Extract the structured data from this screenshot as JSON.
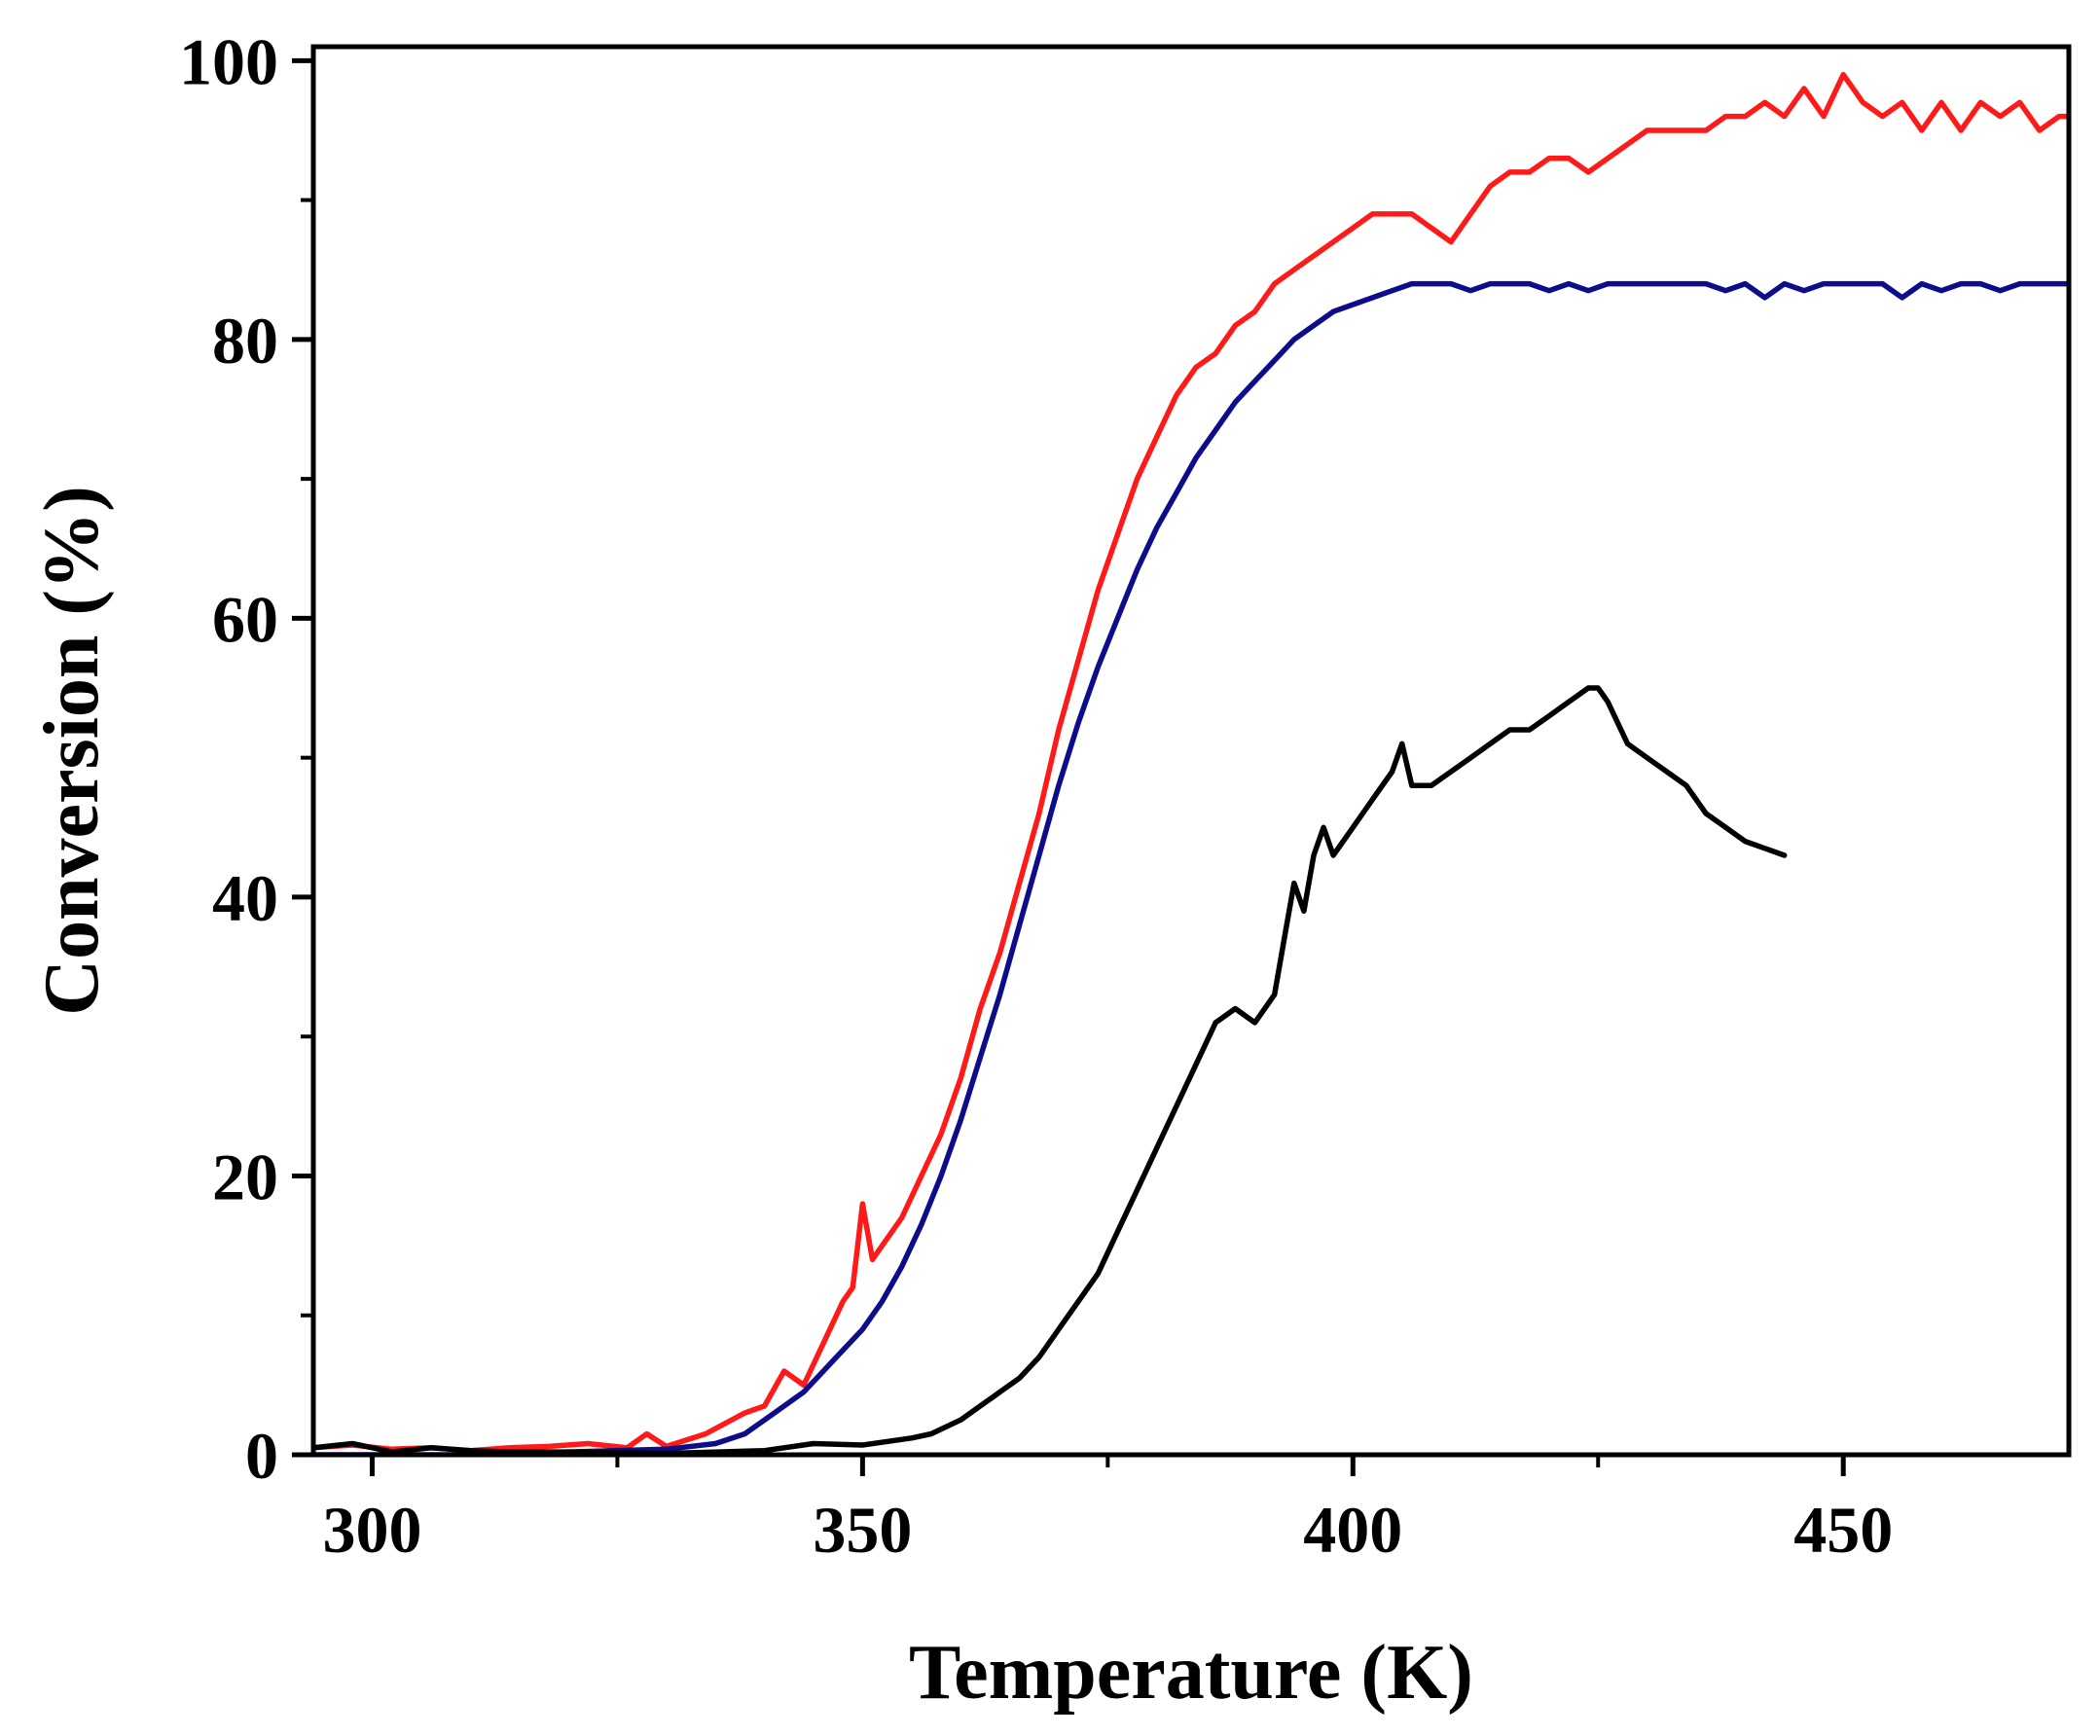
{
  "chart_data": {
    "type": "line",
    "title": "",
    "xlabel": "Temperature (K)",
    "ylabel": "Conversion (%)",
    "xlim": [
      294,
      473
    ],
    "ylim": [
      0,
      101
    ],
    "x_ticks": [
      300,
      350,
      400,
      450
    ],
    "x_tick_labels": [
      "300",
      "350",
      "400",
      "450"
    ],
    "x_minor_ticks": [
      325,
      375,
      425
    ],
    "y_ticks": [
      0,
      20,
      40,
      60,
      80,
      100
    ],
    "y_tick_labels": [
      "0",
      "20",
      "40",
      "60",
      "80",
      "100"
    ],
    "y_minor_ticks": [
      10,
      30,
      50,
      70,
      90
    ],
    "grid": false,
    "legend": "none",
    "series": [
      {
        "name": "red",
        "color": "#ff1a1a",
        "points": [
          [
            294,
            0.5
          ],
          [
            298,
            0.7
          ],
          [
            302,
            0.4
          ],
          [
            306,
            0.5
          ],
          [
            310,
            0.3
          ],
          [
            314,
            0.5
          ],
          [
            318,
            0.6
          ],
          [
            322,
            0.8
          ],
          [
            326,
            0.5
          ],
          [
            328,
            1.5
          ],
          [
            330,
            0.6
          ],
          [
            334,
            1.5
          ],
          [
            338,
            3
          ],
          [
            340,
            3.5
          ],
          [
            342,
            6
          ],
          [
            344,
            5
          ],
          [
            346,
            8
          ],
          [
            348,
            11
          ],
          [
            349,
            12
          ],
          [
            350,
            18
          ],
          [
            351,
            14
          ],
          [
            352,
            15
          ],
          [
            354,
            17
          ],
          [
            356,
            20
          ],
          [
            358,
            23
          ],
          [
            360,
            27
          ],
          [
            362,
            32
          ],
          [
            364,
            36
          ],
          [
            366,
            41
          ],
          [
            368,
            46
          ],
          [
            370,
            52
          ],
          [
            372,
            57
          ],
          [
            374,
            62
          ],
          [
            376,
            66
          ],
          [
            378,
            70
          ],
          [
            380,
            73
          ],
          [
            382,
            76
          ],
          [
            384,
            78
          ],
          [
            386,
            79
          ],
          [
            388,
            81
          ],
          [
            390,
            82
          ],
          [
            392,
            84
          ],
          [
            394,
            85
          ],
          [
            396,
            86
          ],
          [
            398,
            87
          ],
          [
            400,
            88
          ],
          [
            402,
            89
          ],
          [
            404,
            89
          ],
          [
            406,
            89
          ],
          [
            408,
            88
          ],
          [
            410,
            87
          ],
          [
            412,
            89
          ],
          [
            414,
            91
          ],
          [
            416,
            92
          ],
          [
            418,
            92
          ],
          [
            420,
            93
          ],
          [
            422,
            93
          ],
          [
            424,
            92
          ],
          [
            426,
            93
          ],
          [
            428,
            94
          ],
          [
            430,
            95
          ],
          [
            432,
            95
          ],
          [
            434,
            95
          ],
          [
            436,
            95
          ],
          [
            438,
            96
          ],
          [
            440,
            96
          ],
          [
            442,
            97
          ],
          [
            444,
            96
          ],
          [
            446,
            98
          ],
          [
            448,
            96
          ],
          [
            450,
            99
          ],
          [
            452,
            97
          ],
          [
            454,
            96
          ],
          [
            456,
            97
          ],
          [
            458,
            95
          ],
          [
            460,
            97
          ],
          [
            462,
            95
          ],
          [
            464,
            97
          ],
          [
            466,
            96
          ],
          [
            468,
            97
          ],
          [
            470,
            95
          ],
          [
            472,
            96
          ],
          [
            473,
            96
          ]
        ]
      },
      {
        "name": "blue",
        "color": "#0d0d8c",
        "points": [
          [
            294,
            0
          ],
          [
            300,
            0
          ],
          [
            310,
            0
          ],
          [
            320,
            0.2
          ],
          [
            330,
            0.4
          ],
          [
            335,
            0.8
          ],
          [
            338,
            1.5
          ],
          [
            340,
            2.5
          ],
          [
            342,
            3.5
          ],
          [
            344,
            4.5
          ],
          [
            346,
            6
          ],
          [
            348,
            7.5
          ],
          [
            350,
            9
          ],
          [
            352,
            11
          ],
          [
            354,
            13.5
          ],
          [
            356,
            16.5
          ],
          [
            358,
            20
          ],
          [
            360,
            24
          ],
          [
            362,
            28.5
          ],
          [
            364,
            33
          ],
          [
            366,
            38
          ],
          [
            368,
            43
          ],
          [
            370,
            48
          ],
          [
            372,
            52.5
          ],
          [
            374,
            56.5
          ],
          [
            376,
            60
          ],
          [
            378,
            63.5
          ],
          [
            380,
            66.5
          ],
          [
            382,
            69
          ],
          [
            384,
            71.5
          ],
          [
            386,
            73.5
          ],
          [
            388,
            75.5
          ],
          [
            390,
            77
          ],
          [
            392,
            78.5
          ],
          [
            394,
            80
          ],
          [
            396,
            81
          ],
          [
            398,
            82
          ],
          [
            400,
            82.5
          ],
          [
            402,
            83
          ],
          [
            404,
            83.5
          ],
          [
            406,
            84
          ],
          [
            408,
            84
          ],
          [
            410,
            84
          ],
          [
            412,
            83.5
          ],
          [
            414,
            84
          ],
          [
            416,
            84
          ],
          [
            418,
            84
          ],
          [
            420,
            83.5
          ],
          [
            422,
            84
          ],
          [
            424,
            83.5
          ],
          [
            426,
            84
          ],
          [
            428,
            84
          ],
          [
            430,
            84
          ],
          [
            432,
            84
          ],
          [
            434,
            84
          ],
          [
            436,
            84
          ],
          [
            438,
            83.5
          ],
          [
            440,
            84
          ],
          [
            442,
            83
          ],
          [
            444,
            84
          ],
          [
            446,
            83.5
          ],
          [
            448,
            84
          ],
          [
            450,
            84
          ],
          [
            452,
            84
          ],
          [
            454,
            84
          ],
          [
            456,
            83
          ],
          [
            458,
            84
          ],
          [
            460,
            83.5
          ],
          [
            462,
            84
          ],
          [
            464,
            84
          ],
          [
            466,
            83.5
          ],
          [
            468,
            84
          ],
          [
            470,
            84
          ],
          [
            472,
            84
          ],
          [
            473,
            84
          ]
        ]
      },
      {
        "name": "black",
        "color": "#000000",
        "points": [
          [
            294,
            0.5
          ],
          [
            298,
            0.8
          ],
          [
            302,
            0.2
          ],
          [
            306,
            0.5
          ],
          [
            310,
            0.3
          ],
          [
            314,
            0.2
          ],
          [
            320,
            0.2
          ],
          [
            330,
            0.1
          ],
          [
            340,
            0.3
          ],
          [
            345,
            0.8
          ],
          [
            350,
            0.7
          ],
          [
            355,
            1.2
          ],
          [
            357,
            1.5
          ],
          [
            360,
            2.5
          ],
          [
            362,
            3.5
          ],
          [
            364,
            4.5
          ],
          [
            366,
            5.5
          ],
          [
            368,
            7
          ],
          [
            370,
            9
          ],
          [
            372,
            11
          ],
          [
            374,
            13
          ],
          [
            376,
            16
          ],
          [
            378,
            19
          ],
          [
            380,
            22
          ],
          [
            382,
            25
          ],
          [
            384,
            28
          ],
          [
            386,
            31
          ],
          [
            388,
            32
          ],
          [
            390,
            31
          ],
          [
            392,
            33
          ],
          [
            393,
            37
          ],
          [
            394,
            41
          ],
          [
            395,
            39
          ],
          [
            396,
            43
          ],
          [
            397,
            45
          ],
          [
            398,
            43
          ],
          [
            400,
            45
          ],
          [
            402,
            47
          ],
          [
            404,
            49
          ],
          [
            405,
            51
          ],
          [
            406,
            48
          ],
          [
            408,
            48
          ],
          [
            410,
            49
          ],
          [
            412,
            50
          ],
          [
            414,
            51
          ],
          [
            416,
            52
          ],
          [
            418,
            52
          ],
          [
            420,
            53
          ],
          [
            422,
            54
          ],
          [
            424,
            55
          ],
          [
            425,
            55
          ],
          [
            426,
            54
          ],
          [
            428,
            51
          ],
          [
            430,
            50
          ],
          [
            432,
            49
          ],
          [
            434,
            48
          ],
          [
            436,
            46
          ],
          [
            438,
            45
          ],
          [
            440,
            44
          ],
          [
            442,
            43.5
          ],
          [
            444,
            43
          ]
        ]
      }
    ]
  }
}
